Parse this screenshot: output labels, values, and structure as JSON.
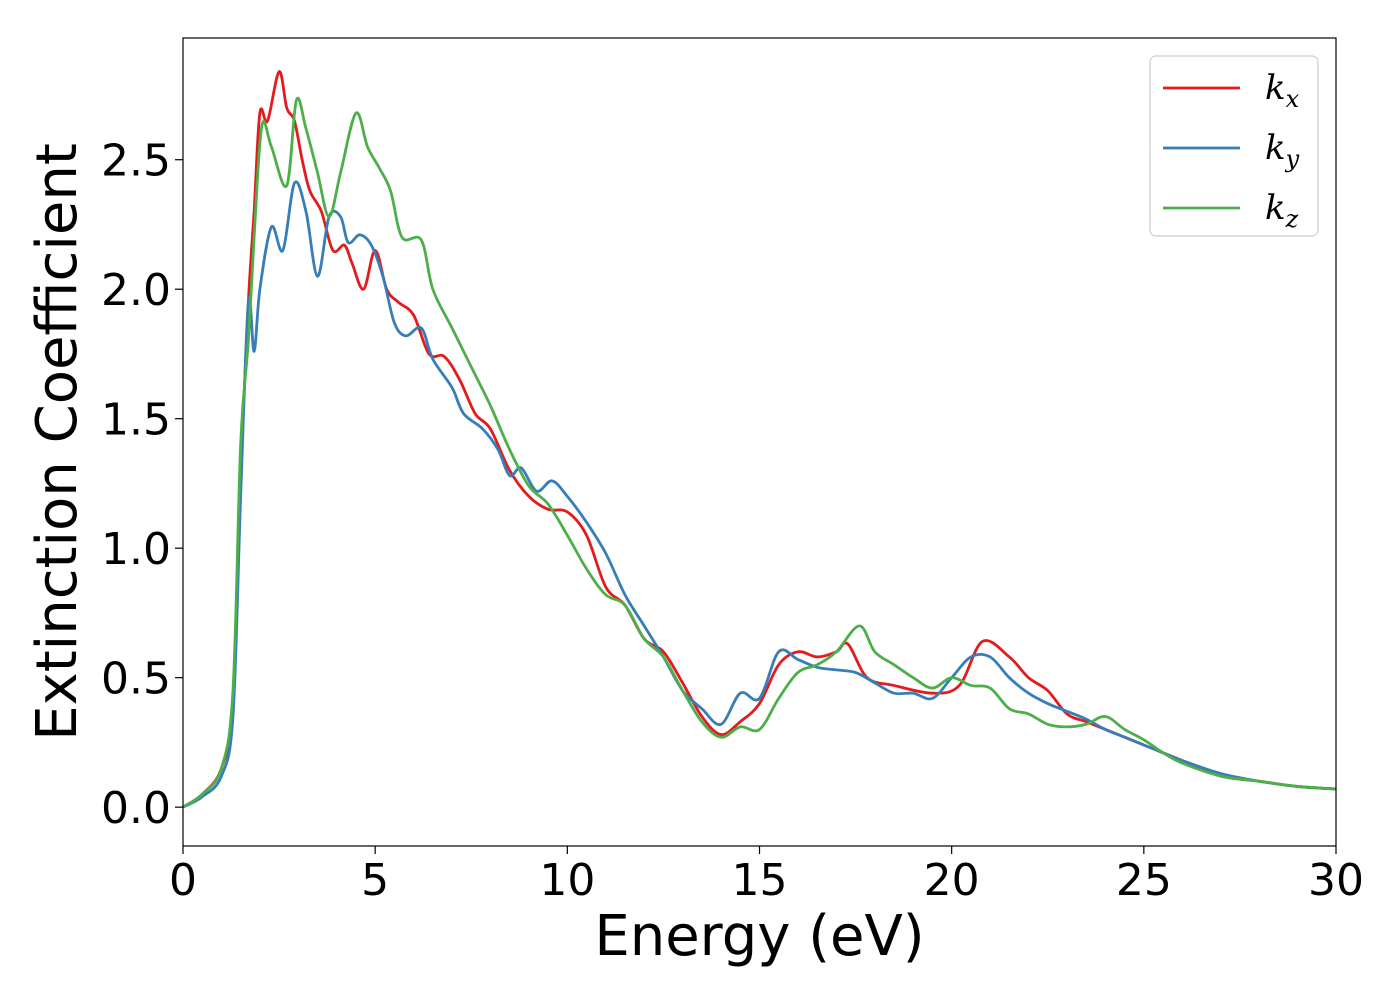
{
  "chart_data": {
    "type": "line",
    "title": "",
    "xlabel": "Energy (eV)",
    "ylabel": "Extinction Coefficient",
    "xlim": [
      0,
      30
    ],
    "ylim": [
      -0.15,
      2.97
    ],
    "xticks": [
      0,
      5,
      10,
      15,
      20,
      25,
      30
    ],
    "yticks": [
      0.0,
      0.5,
      1.0,
      1.5,
      2.0,
      2.5
    ],
    "ytick_labels": [
      "0.0",
      "0.5",
      "1.0",
      "1.5",
      "2.0",
      "2.5"
    ],
    "grid": false,
    "legend": {
      "position": "top-right"
    },
    "series": [
      {
        "name": "k",
        "subscript": "x",
        "color": "#e41a1c",
        "points": [
          [
            0,
            0.0
          ],
          [
            0.5,
            0.05
          ],
          [
            1.0,
            0.15
          ],
          [
            1.3,
            0.4
          ],
          [
            1.5,
            1.3
          ],
          [
            1.7,
            1.95
          ],
          [
            1.85,
            2.3
          ],
          [
            2.0,
            2.68
          ],
          [
            2.2,
            2.65
          ],
          [
            2.5,
            2.84
          ],
          [
            2.7,
            2.7
          ],
          [
            2.9,
            2.65
          ],
          [
            3.1,
            2.5
          ],
          [
            3.3,
            2.38
          ],
          [
            3.6,
            2.3
          ],
          [
            3.9,
            2.15
          ],
          [
            4.2,
            2.17
          ],
          [
            4.4,
            2.1
          ],
          [
            4.7,
            2.0
          ],
          [
            5.0,
            2.15
          ],
          [
            5.3,
            2.0
          ],
          [
            5.6,
            1.95
          ],
          [
            6.0,
            1.9
          ],
          [
            6.4,
            1.75
          ],
          [
            6.8,
            1.74
          ],
          [
            7.2,
            1.65
          ],
          [
            7.6,
            1.52
          ],
          [
            8.0,
            1.46
          ],
          [
            8.5,
            1.3
          ],
          [
            9.0,
            1.2
          ],
          [
            9.5,
            1.15
          ],
          [
            10.0,
            1.14
          ],
          [
            10.5,
            1.05
          ],
          [
            11.0,
            0.85
          ],
          [
            11.5,
            0.78
          ],
          [
            12.0,
            0.65
          ],
          [
            12.5,
            0.6
          ],
          [
            13.0,
            0.48
          ],
          [
            13.5,
            0.35
          ],
          [
            14.0,
            0.28
          ],
          [
            14.5,
            0.33
          ],
          [
            15.0,
            0.4
          ],
          [
            15.5,
            0.55
          ],
          [
            16.0,
            0.6
          ],
          [
            16.5,
            0.58
          ],
          [
            17.0,
            0.6
          ],
          [
            17.3,
            0.63
          ],
          [
            17.8,
            0.5
          ],
          [
            18.5,
            0.47
          ],
          [
            19.5,
            0.44
          ],
          [
            20.2,
            0.47
          ],
          [
            20.8,
            0.64
          ],
          [
            21.5,
            0.58
          ],
          [
            22.0,
            0.5
          ],
          [
            22.5,
            0.45
          ],
          [
            23.0,
            0.36
          ],
          [
            23.5,
            0.33
          ],
          [
            24.0,
            0.3
          ],
          [
            24.5,
            0.27
          ],
          [
            25.0,
            0.24
          ],
          [
            25.5,
            0.21
          ],
          [
            26.0,
            0.18
          ],
          [
            27.0,
            0.12
          ],
          [
            28.0,
            0.1
          ],
          [
            29.0,
            0.08
          ],
          [
            30.0,
            0.07
          ]
        ]
      },
      {
        "name": "k",
        "subscript": "y",
        "color": "#377eb8",
        "points": [
          [
            0,
            0.0
          ],
          [
            0.5,
            0.04
          ],
          [
            1.0,
            0.12
          ],
          [
            1.3,
            0.35
          ],
          [
            1.5,
            1.2
          ],
          [
            1.7,
            1.95
          ],
          [
            1.85,
            1.76
          ],
          [
            2.0,
            2.0
          ],
          [
            2.3,
            2.24
          ],
          [
            2.6,
            2.15
          ],
          [
            2.9,
            2.41
          ],
          [
            3.2,
            2.3
          ],
          [
            3.5,
            2.05
          ],
          [
            3.8,
            2.28
          ],
          [
            4.1,
            2.28
          ],
          [
            4.3,
            2.18
          ],
          [
            4.6,
            2.21
          ],
          [
            4.9,
            2.17
          ],
          [
            5.2,
            2.05
          ],
          [
            5.5,
            1.87
          ],
          [
            5.8,
            1.82
          ],
          [
            6.2,
            1.85
          ],
          [
            6.5,
            1.73
          ],
          [
            7.0,
            1.62
          ],
          [
            7.3,
            1.52
          ],
          [
            7.8,
            1.46
          ],
          [
            8.2,
            1.38
          ],
          [
            8.5,
            1.28
          ],
          [
            8.8,
            1.31
          ],
          [
            9.2,
            1.22
          ],
          [
            9.6,
            1.26
          ],
          [
            10.0,
            1.2
          ],
          [
            10.5,
            1.1
          ],
          [
            11.0,
            0.98
          ],
          [
            11.5,
            0.82
          ],
          [
            12.0,
            0.7
          ],
          [
            12.5,
            0.58
          ],
          [
            13.0,
            0.45
          ],
          [
            13.5,
            0.38
          ],
          [
            14.0,
            0.32
          ],
          [
            14.5,
            0.44
          ],
          [
            15.0,
            0.42
          ],
          [
            15.5,
            0.6
          ],
          [
            16.0,
            0.57
          ],
          [
            16.5,
            0.54
          ],
          [
            17.0,
            0.53
          ],
          [
            17.5,
            0.52
          ],
          [
            18.0,
            0.48
          ],
          [
            18.5,
            0.44
          ],
          [
            19.0,
            0.44
          ],
          [
            19.5,
            0.42
          ],
          [
            20.0,
            0.5
          ],
          [
            20.5,
            0.58
          ],
          [
            21.0,
            0.58
          ],
          [
            21.5,
            0.5
          ],
          [
            22.0,
            0.44
          ],
          [
            22.5,
            0.4
          ],
          [
            23.0,
            0.37
          ],
          [
            23.5,
            0.34
          ],
          [
            24.0,
            0.3
          ],
          [
            24.5,
            0.27
          ],
          [
            25.0,
            0.24
          ],
          [
            25.5,
            0.21
          ],
          [
            26.0,
            0.18
          ],
          [
            27.0,
            0.13
          ],
          [
            28.0,
            0.1
          ],
          [
            29.0,
            0.08
          ],
          [
            30.0,
            0.07
          ]
        ]
      },
      {
        "name": "k",
        "subscript": "z",
        "color": "#4daf4a",
        "points": [
          [
            0,
            0.0
          ],
          [
            0.5,
            0.05
          ],
          [
            1.0,
            0.15
          ],
          [
            1.3,
            0.45
          ],
          [
            1.5,
            1.4
          ],
          [
            1.7,
            1.8
          ],
          [
            1.85,
            2.2
          ],
          [
            2.05,
            2.63
          ],
          [
            2.3,
            2.55
          ],
          [
            2.7,
            2.4
          ],
          [
            2.95,
            2.73
          ],
          [
            3.2,
            2.62
          ],
          [
            3.5,
            2.45
          ],
          [
            3.8,
            2.28
          ],
          [
            4.1,
            2.45
          ],
          [
            4.5,
            2.68
          ],
          [
            4.8,
            2.55
          ],
          [
            5.1,
            2.47
          ],
          [
            5.4,
            2.38
          ],
          [
            5.7,
            2.2
          ],
          [
            6.2,
            2.19
          ],
          [
            6.5,
            2.0
          ],
          [
            7.0,
            1.85
          ],
          [
            7.5,
            1.7
          ],
          [
            8.0,
            1.55
          ],
          [
            8.5,
            1.38
          ],
          [
            9.0,
            1.24
          ],
          [
            9.5,
            1.17
          ],
          [
            10.0,
            1.05
          ],
          [
            10.5,
            0.92
          ],
          [
            11.0,
            0.82
          ],
          [
            11.5,
            0.78
          ],
          [
            12.0,
            0.65
          ],
          [
            12.5,
            0.58
          ],
          [
            13.0,
            0.45
          ],
          [
            13.5,
            0.33
          ],
          [
            14.0,
            0.27
          ],
          [
            14.5,
            0.31
          ],
          [
            15.0,
            0.3
          ],
          [
            15.5,
            0.42
          ],
          [
            16.0,
            0.52
          ],
          [
            16.5,
            0.55
          ],
          [
            17.0,
            0.6
          ],
          [
            17.6,
            0.7
          ],
          [
            18.0,
            0.6
          ],
          [
            18.5,
            0.55
          ],
          [
            19.0,
            0.5
          ],
          [
            19.5,
            0.46
          ],
          [
            20.0,
            0.5
          ],
          [
            20.5,
            0.47
          ],
          [
            21.0,
            0.46
          ],
          [
            21.5,
            0.38
          ],
          [
            22.0,
            0.36
          ],
          [
            22.5,
            0.32
          ],
          [
            23.0,
            0.31
          ],
          [
            23.5,
            0.32
          ],
          [
            24.0,
            0.35
          ],
          [
            24.5,
            0.3
          ],
          [
            25.0,
            0.26
          ],
          [
            25.5,
            0.21
          ],
          [
            26.0,
            0.17
          ],
          [
            27.0,
            0.12
          ],
          [
            28.0,
            0.1
          ],
          [
            29.0,
            0.08
          ],
          [
            30.0,
            0.07
          ]
        ]
      }
    ]
  }
}
